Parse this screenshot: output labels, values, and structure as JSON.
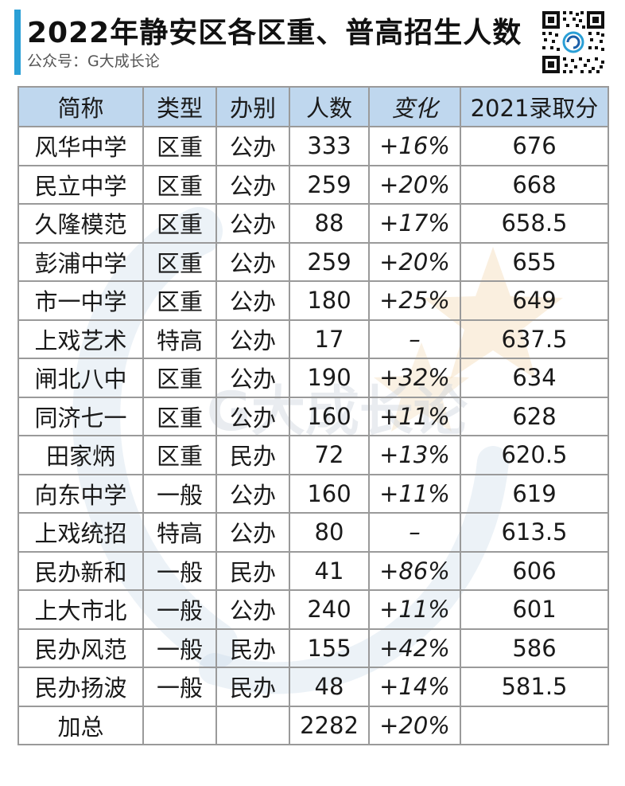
{
  "header": {
    "title": "2022年静安区各区重、普高招生人数",
    "subtitle": "公众号：G大成长论",
    "accent_color": "#2a9fd6",
    "qr_icon": "qr-code"
  },
  "watermark": {
    "text": "G大成长论"
  },
  "table": {
    "header_bg": "#bfd7ee",
    "border_color": "#9a9a9a",
    "columns": [
      "简称",
      "类型",
      "办别",
      "人数",
      "变化",
      "2021录取分"
    ],
    "rows": [
      {
        "name": "风华中学",
        "type": "区重",
        "ownership": "公办",
        "count": "333",
        "change": "+16%",
        "score": "676"
      },
      {
        "name": "民立中学",
        "type": "区重",
        "ownership": "公办",
        "count": "259",
        "change": "+20%",
        "score": "668"
      },
      {
        "name": "久隆模范",
        "type": "区重",
        "ownership": "公办",
        "count": "88",
        "change": "+17%",
        "score": "658.5"
      },
      {
        "name": "彭浦中学",
        "type": "区重",
        "ownership": "公办",
        "count": "259",
        "change": "+20%",
        "score": "655"
      },
      {
        "name": "市一中学",
        "type": "区重",
        "ownership": "公办",
        "count": "180",
        "change": "+25%",
        "score": "649"
      },
      {
        "name": "上戏艺术",
        "type": "特高",
        "ownership": "公办",
        "count": "17",
        "change": "–",
        "score": "637.5"
      },
      {
        "name": "闸北八中",
        "type": "区重",
        "ownership": "公办",
        "count": "190",
        "change": "+32%",
        "score": "634"
      },
      {
        "name": "同济七一",
        "type": "区重",
        "ownership": "公办",
        "count": "160",
        "change": "+11%",
        "score": "628"
      },
      {
        "name": "田家炳",
        "type": "区重",
        "ownership": "民办",
        "count": "72",
        "change": "+13%",
        "score": "620.5"
      },
      {
        "name": "向东中学",
        "type": "一般",
        "ownership": "公办",
        "count": "160",
        "change": "+11%",
        "score": "619"
      },
      {
        "name": "上戏统招",
        "type": "特高",
        "ownership": "公办",
        "count": "80",
        "change": "–",
        "score": "613.5"
      },
      {
        "name": "民办新和",
        "type": "一般",
        "ownership": "民办",
        "count": "41",
        "change": "+86%",
        "score": "606"
      },
      {
        "name": "上大市北",
        "type": "一般",
        "ownership": "公办",
        "count": "240",
        "change": "+11%",
        "score": "601"
      },
      {
        "name": "民办风范",
        "type": "一般",
        "ownership": "民办",
        "count": "155",
        "change": "+42%",
        "score": "586"
      },
      {
        "name": "民办扬波",
        "type": "一般",
        "ownership": "民办",
        "count": "48",
        "change": "+14%",
        "score": "581.5"
      }
    ],
    "total": {
      "name": "加总",
      "type": "",
      "ownership": "",
      "count": "2282",
      "change": "+20%",
      "score": ""
    }
  }
}
